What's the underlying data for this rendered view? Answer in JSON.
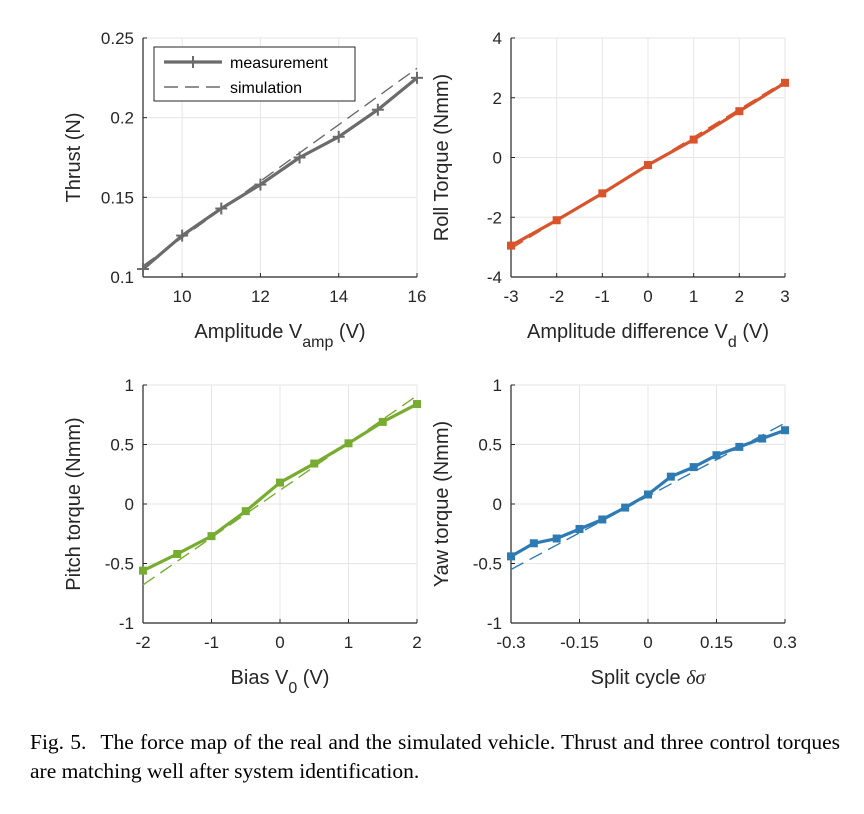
{
  "chart_data": [
    {
      "type": "line",
      "xlabel_main": "Amplitude V",
      "xlabel_sub": "amp",
      "xlabel_unit": " (V)",
      "ylabel": "Thrust (N)",
      "xlim": [
        9,
        16
      ],
      "ylim": [
        0.1,
        0.25
      ],
      "xticks": [
        10,
        12,
        14,
        16
      ],
      "xtick_labels": [
        "10",
        "12",
        "14",
        "16"
      ],
      "yticks": [
        0.1,
        0.15,
        0.2,
        0.25
      ],
      "ytick_labels": [
        "0.1",
        "0.15",
        "0.2",
        "0.25"
      ],
      "grid": true,
      "color": "#6b6b6b",
      "marker": "plus",
      "legend": {
        "position": "top-left",
        "measurement_label": "measurement",
        "simulation_label": "simulation"
      },
      "series": [
        {
          "name": "measurement",
          "x": [
            9,
            10,
            11,
            12,
            13,
            14,
            15,
            16
          ],
          "y": [
            0.105,
            0.126,
            0.143,
            0.158,
            0.175,
            0.188,
            0.205,
            0.225
          ]
        },
        {
          "name": "simulation",
          "x": [
            9,
            16
          ],
          "y": [
            0.107,
            0.231
          ]
        }
      ]
    },
    {
      "type": "line",
      "xlabel_main": "Amplitude difference V",
      "xlabel_sub": "d",
      "xlabel_unit": " (V)",
      "ylabel": "Roll Torque (Nmm)",
      "xlim": [
        -3,
        3
      ],
      "ylim": [
        -4,
        4
      ],
      "xticks": [
        -3,
        -2,
        -1,
        0,
        1,
        2,
        3
      ],
      "xtick_labels": [
        "-3",
        "-2",
        "-1",
        "0",
        "1",
        "2",
        "3"
      ],
      "yticks": [
        -4,
        -2,
        0,
        2,
        4
      ],
      "ytick_labels": [
        "-4",
        "-2",
        "0",
        "2",
        "4"
      ],
      "grid": true,
      "color": "#d9532b",
      "marker": "square",
      "series": [
        {
          "name": "measurement",
          "x": [
            -3,
            -2,
            -1,
            0,
            1,
            2,
            3
          ],
          "y": [
            -2.95,
            -2.1,
            -1.2,
            -0.25,
            0.6,
            1.55,
            2.5
          ]
        },
        {
          "name": "simulation",
          "x": [
            -3,
            3
          ],
          "y": [
            -3.05,
            2.55
          ]
        }
      ]
    },
    {
      "type": "line",
      "xlabel_main": "Bias V",
      "xlabel_sub": "0",
      "xlabel_unit": " (V)",
      "ylabel": "Pitch torque (Nmm)",
      "xlim": [
        -2,
        2
      ],
      "ylim": [
        -1,
        1
      ],
      "xticks": [
        -2,
        -1,
        0,
        1,
        2
      ],
      "xtick_labels": [
        "-2",
        "-1",
        "0",
        "1",
        "2"
      ],
      "yticks": [
        -1,
        -0.5,
        0,
        0.5,
        1
      ],
      "ytick_labels": [
        "-1",
        "-0.5",
        "0",
        "0.5",
        "1"
      ],
      "grid": true,
      "color": "#77ac30",
      "marker": "square",
      "series": [
        {
          "name": "measurement",
          "x": [
            -2,
            -1.5,
            -1,
            -0.5,
            0,
            0.5,
            1,
            1.5,
            2
          ],
          "y": [
            -0.56,
            -0.42,
            -0.27,
            -0.06,
            0.18,
            0.34,
            0.51,
            0.69,
            0.84
          ]
        },
        {
          "name": "simulation",
          "x": [
            -2,
            2
          ],
          "y": [
            -0.68,
            0.91
          ]
        }
      ]
    },
    {
      "type": "line",
      "xlabel_main": "Split cycle ",
      "xlabel_greek": "δσ",
      "ylabel": "Yaw torque (Nmm)",
      "xlim": [
        -0.3,
        0.3
      ],
      "ylim": [
        -1,
        1
      ],
      "xticks": [
        -0.3,
        -0.15,
        0,
        0.15,
        0.3
      ],
      "xtick_labels": [
        "-0.3",
        "-0.15",
        "0",
        "0.15",
        "0.3"
      ],
      "yticks": [
        -1,
        -0.5,
        0,
        0.5,
        1
      ],
      "ytick_labels": [
        "-1",
        "-0.5",
        "0",
        "0.5",
        "1"
      ],
      "grid": true,
      "color": "#2e7bb4",
      "marker": "square",
      "series": [
        {
          "name": "measurement",
          "x": [
            -0.3,
            -0.25,
            -0.2,
            -0.15,
            -0.1,
            -0.05,
            0,
            0.05,
            0.1,
            0.15,
            0.2,
            0.25,
            0.3
          ],
          "y": [
            -0.44,
            -0.33,
            -0.29,
            -0.21,
            -0.13,
            -0.03,
            0.08,
            0.23,
            0.31,
            0.41,
            0.48,
            0.55,
            0.62
          ]
        },
        {
          "name": "simulation",
          "x": [
            -0.3,
            0.3
          ],
          "y": [
            -0.55,
            0.68
          ]
        }
      ]
    }
  ],
  "caption": {
    "label": "Fig. 5.",
    "text": "The force map of the real and the simulated vehicle. Thrust and three control torques are matching well after system identification."
  }
}
